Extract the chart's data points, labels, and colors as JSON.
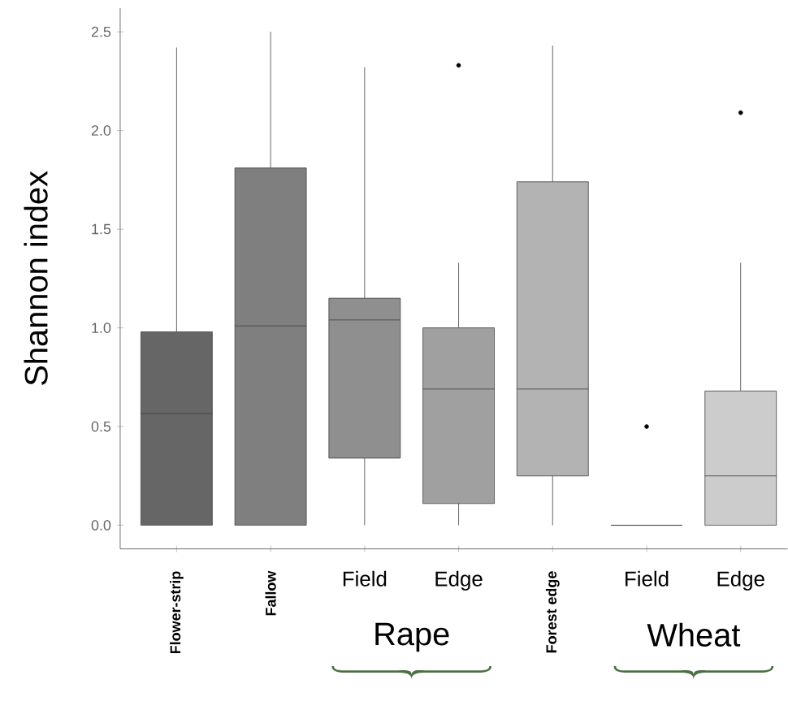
{
  "chart_data": {
    "type": "box",
    "ylabel": "Shannon index",
    "categories": [
      "Flower-strip",
      "Fallow",
      "Field",
      "Edge",
      "Forest edge",
      "Field",
      "Edge"
    ],
    "colors": [
      "#666666",
      "#7f7f7f",
      "#8f8f8f",
      "#a0a0a0",
      "#b3b3b3",
      "#404040",
      "#cccccc"
    ],
    "boxes": [
      {
        "low": 0,
        "q1": 0,
        "median": 0.565,
        "q3": 0.98,
        "high": 2.42
      },
      {
        "low": 0,
        "q1": 0,
        "median": 1.01,
        "q3": 1.81,
        "high": 2.5
      },
      {
        "low": 0,
        "q1": 0.34,
        "median": 1.04,
        "q3": 1.15,
        "high": 2.32
      },
      {
        "low": 0,
        "q1": 0.11,
        "median": 0.69,
        "q3": 1.0,
        "high": 1.33,
        "outliers": [
          2.33
        ]
      },
      {
        "low": 0,
        "q1": 0.25,
        "median": 0.69,
        "q3": 1.74,
        "high": 2.43
      },
      {
        "low": 0,
        "q1": 0,
        "median": 0,
        "q3": 0,
        "high": 0,
        "outliers": [
          0.5
        ]
      },
      {
        "low": 0,
        "q1": 0,
        "median": 0.25,
        "q3": 0.68,
        "high": 1.33,
        "outliers": [
          2.09
        ]
      }
    ],
    "ylim": [
      -0.12,
      2.62
    ],
    "yticks": [
      {
        "value": 0,
        "label": "0.0"
      },
      {
        "value": 0.5,
        "label": "0.5"
      },
      {
        "value": 1,
        "label": "1.0"
      },
      {
        "value": 1.5,
        "label": "1.5"
      },
      {
        "value": 2,
        "label": "2.0"
      },
      {
        "value": 2.5,
        "label": "2.5"
      }
    ],
    "annotations": [
      "Rape",
      "Wheat"
    ],
    "grid": false
  }
}
